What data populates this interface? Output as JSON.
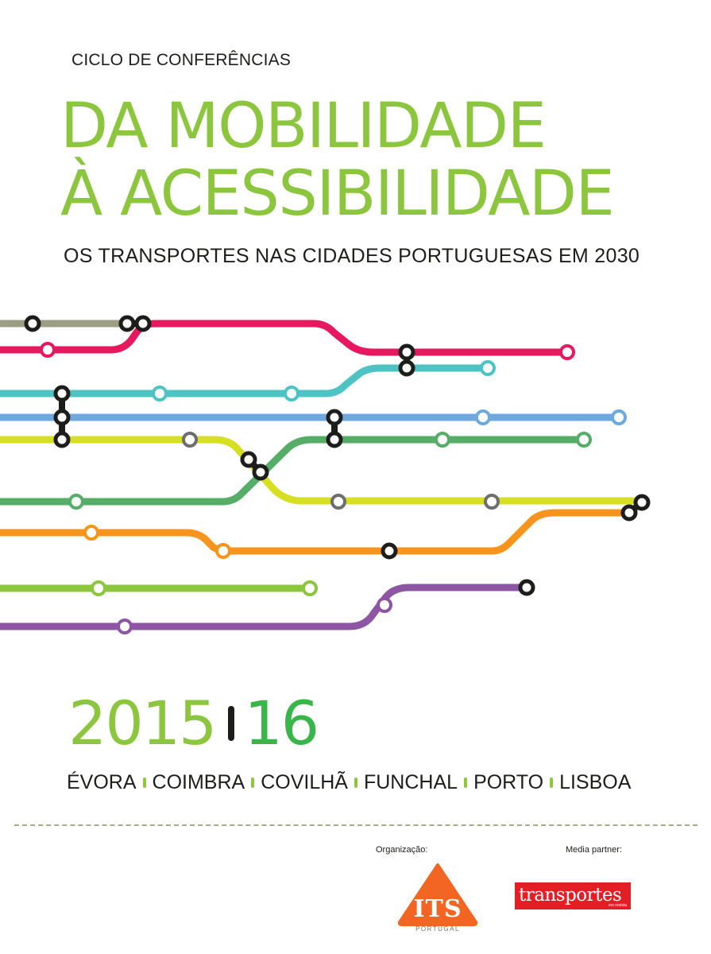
{
  "header": {
    "kicker": "CICLO DE CONFERÊNCIAS",
    "title_line1": "DA MOBILIDADE",
    "title_line2": "À ACESSIBILIDADE",
    "subtitle": "OS TRANSPORTES NAS CIDADES PORTUGUESAS EM 2030"
  },
  "years": {
    "start": "2015",
    "end": "16"
  },
  "cities": [
    "ÉVORA",
    "COIMBRA",
    "COVILHÃ",
    "FUNCHAL",
    "PORTO",
    "LISBOA"
  ],
  "footer": {
    "organization_label": "Organização:",
    "media_label": "Media partner:",
    "its_logo_text": "ITS",
    "its_logo_subtext": "PORTUGAL",
    "media_logo_text": "transportes",
    "media_logo_subtext": "em revista"
  },
  "colors": {
    "title_green": "#8cc63f",
    "year_green": "#39b54a",
    "line_gray": "#9c9e84",
    "line_pink": "#e6195f",
    "line_teal": "#4ec3c3",
    "line_blue": "#6fa8dc",
    "line_lime": "#d7df23",
    "line_green": "#56ad68",
    "line_orange": "#f7941d",
    "line_light_green": "#8cc63f",
    "line_purple": "#8e55a4",
    "its_orange": "#f26522",
    "media_red": "#e31e24"
  },
  "icons": [
    "its-portugal-logo",
    "transportes-em-revista-logo"
  ]
}
